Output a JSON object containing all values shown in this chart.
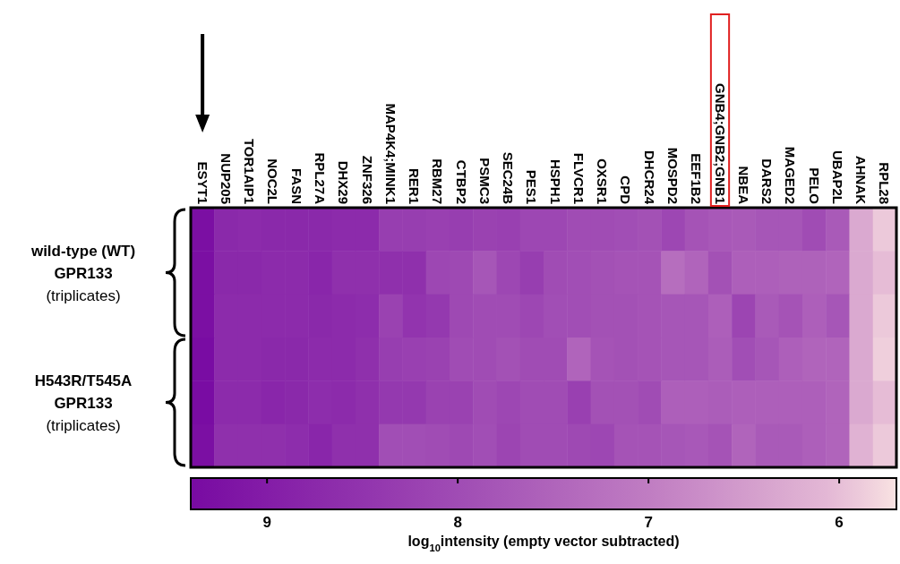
{
  "chart_data": {
    "type": "heatmap",
    "categories": [
      "ESYT1",
      "NUP205",
      "TOR1AIP1",
      "NOC2L",
      "FASN",
      "RPL27A",
      "DHX29",
      "ZNF326",
      "MAP4K4;MINK1",
      "RER1",
      "RBM27",
      "CTBP2",
      "PSMC3",
      "SEC24B",
      "PES1",
      "HSPH1",
      "FLVCR1",
      "OXSR1",
      "CPD",
      "DHCR24",
      "MOSPD2",
      "EEF1B2",
      "GNB4;GNB2;GNB1",
      "NBEA",
      "DARS2",
      "MAGED2",
      "PELO",
      "UBAP2L",
      "AHNAK",
      "RPL28"
    ],
    "y_categories": [
      null,
      null,
      null,
      null,
      null,
      null
    ],
    "cells": [
      [
        9.3,
        8.75,
        8.7,
        8.75,
        8.75,
        8.75,
        8.7,
        8.7,
        8.3,
        8.3,
        8.25,
        8.3,
        8.2,
        8.25,
        8.1,
        8.1,
        8.0,
        8.0,
        7.95,
        7.9,
        8.1,
        7.85,
        7.75,
        7.7,
        7.8,
        7.8,
        8.0,
        7.7,
        6.3,
        5.9
      ],
      [
        9.3,
        8.75,
        8.75,
        8.7,
        8.7,
        8.8,
        8.6,
        8.6,
        8.6,
        8.6,
        8.1,
        8.05,
        7.8,
        8.1,
        8.3,
        8.0,
        7.95,
        7.9,
        7.85,
        7.85,
        7.3,
        7.5,
        7.9,
        7.6,
        7.6,
        7.55,
        7.55,
        7.5,
        6.3,
        6.0
      ],
      [
        9.3,
        8.7,
        8.7,
        8.7,
        8.7,
        8.75,
        8.7,
        8.65,
        8.2,
        8.5,
        8.4,
        8.05,
        8.0,
        8.0,
        8.1,
        7.95,
        7.95,
        7.9,
        7.9,
        7.85,
        7.8,
        7.8,
        7.6,
        8.15,
        7.7,
        7.85,
        7.6,
        7.8,
        6.3,
        5.9
      ],
      [
        9.35,
        8.7,
        8.7,
        8.75,
        8.75,
        8.7,
        8.7,
        8.6,
        8.3,
        8.25,
        8.2,
        8.0,
        8.0,
        7.9,
        8.0,
        8.0,
        7.5,
        7.85,
        7.9,
        7.85,
        7.8,
        7.8,
        7.65,
        7.95,
        7.8,
        7.6,
        7.5,
        7.5,
        6.3,
        5.85
      ],
      [
        9.35,
        8.7,
        8.7,
        8.8,
        8.75,
        8.65,
        8.7,
        8.6,
        8.4,
        8.4,
        8.2,
        8.2,
        8.0,
        8.1,
        8.0,
        8.0,
        8.25,
        7.9,
        7.9,
        8.0,
        7.6,
        7.6,
        7.65,
        7.6,
        7.6,
        7.6,
        7.6,
        7.5,
        6.3,
        6.0
      ],
      [
        9.3,
        8.6,
        8.6,
        8.6,
        8.65,
        8.8,
        8.6,
        8.6,
        7.95,
        7.95,
        8.0,
        8.05,
        7.95,
        8.15,
        8.0,
        8.0,
        8.05,
        8.1,
        7.85,
        7.85,
        7.8,
        7.75,
        7.85,
        7.5,
        7.7,
        7.7,
        7.6,
        7.5,
        6.15,
        5.9
      ]
    ],
    "clim": [
      9.4,
      5.7
    ],
    "cticks": [
      9,
      8,
      7,
      6
    ],
    "clabel": "log$_{10}$intensity (empty vector subtracted)",
    "annotations": [
      "wild-type (WT)\nGPR133\n(triplicates)",
      "H543R/T545A\nGPR133\n(triplicates)"
    ]
  }
}
